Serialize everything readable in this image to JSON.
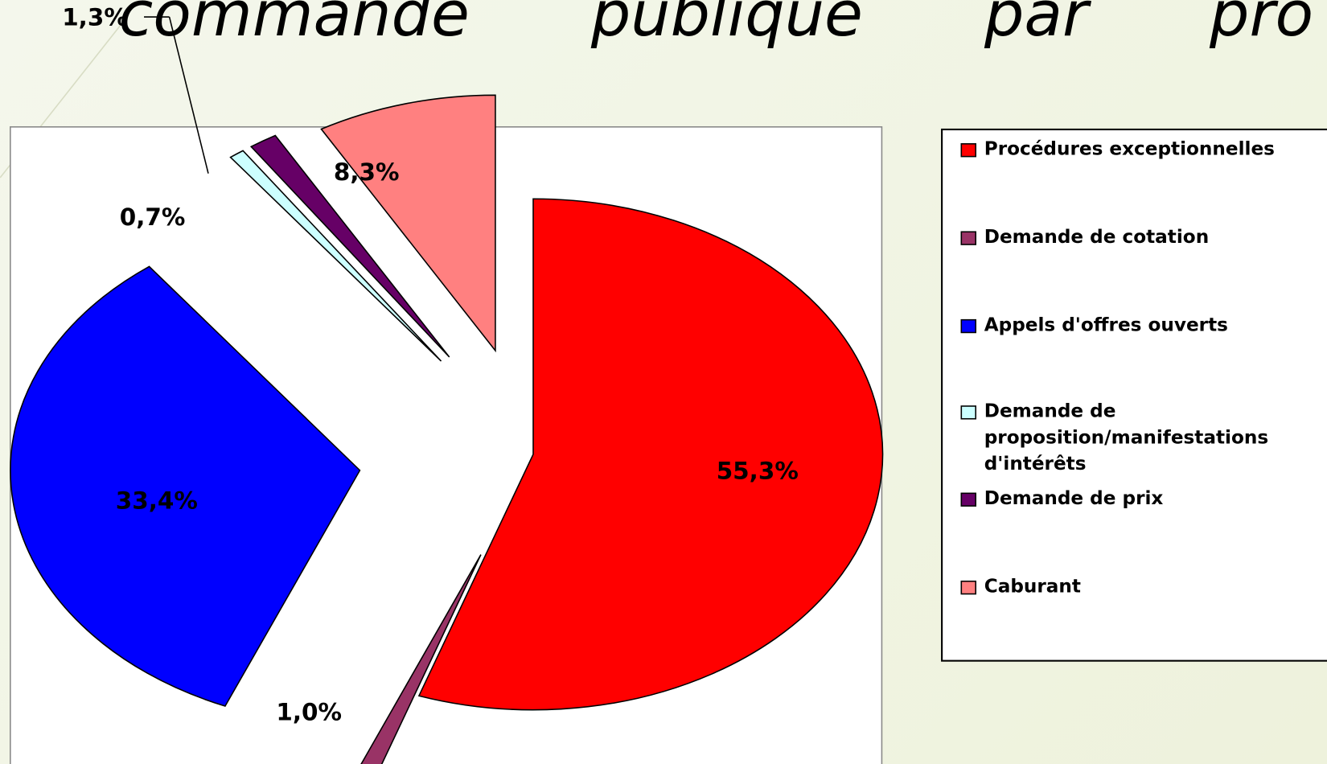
{
  "chart_data": {
    "type": "pie",
    "title": "commande publique par pro",
    "categories": [
      "Procédures exceptionnelles",
      "Demande de cotation",
      "Appels d'offres ouverts",
      "Demande de proposition/manifestations d'intérêts",
      "Demande de prix",
      "Caburant"
    ],
    "values": [
      55.3,
      1.0,
      33.4,
      0.7,
      1.3,
      8.3
    ],
    "value_labels": [
      "55,3%",
      "1,0%",
      "33,4%",
      "0,7%",
      "1,3%",
      "8,3%"
    ],
    "colors": [
      "#ff0000",
      "#993366",
      "#0000ff",
      "#ccffff",
      "#660066",
      "#ff8080"
    ]
  }
}
